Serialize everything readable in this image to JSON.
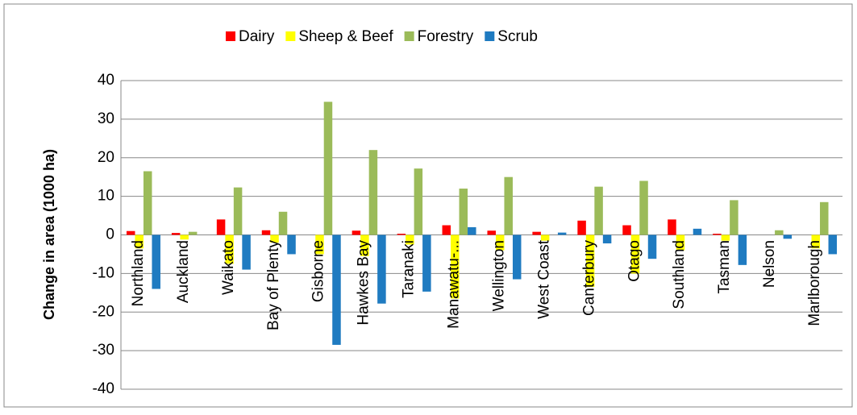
{
  "chart_data": {
    "type": "bar",
    "y_label": "Change in area (1000 ha)",
    "categories": [
      "Northland",
      "Auckland",
      "Waikato",
      "Bay of Plenty",
      "Gisborne",
      "Hawkes Bay",
      "Taranaki",
      "Manawatu-...",
      "Wellington",
      "West Coast",
      "Canterbury",
      "Otago",
      "Southland",
      "Tasman",
      "Nelson",
      "Marlborough"
    ],
    "series": [
      {
        "name": "Dairy",
        "color": "#ff0000",
        "values": [
          1,
          0.5,
          4,
          1.2,
          0,
          1.1,
          0.3,
          2.5,
          1.1,
          0.8,
          3.7,
          2.5,
          4,
          0.3,
          0,
          0
        ]
      },
      {
        "name": "Sheep & Beef",
        "color": "#ffff00",
        "values": [
          -3.5,
          -1.2,
          -7.5,
          -2,
          -5,
          -5.5,
          -2.5,
          -16.5,
          -4,
          -1.5,
          -13.5,
          -10,
          -4,
          -1.5,
          0,
          -3.5
        ]
      },
      {
        "name": "Forestry",
        "color": "#9bbb59",
        "values": [
          16.5,
          0.8,
          12.3,
          6,
          34.5,
          22,
          17.2,
          12,
          15,
          0,
          12.5,
          14,
          0,
          9,
          1.2,
          8.5
        ]
      },
      {
        "name": "Scrub",
        "color": "#1f7bc1",
        "values": [
          -14,
          0,
          -9,
          -5,
          -28.5,
          -17.8,
          -14.7,
          2,
          -11.5,
          0.6,
          -2.2,
          -6.2,
          1.6,
          -7.8,
          -1,
          -5
        ]
      }
    ],
    "ylim": [
      -40,
      40
    ],
    "yticks": [
      -40,
      -30,
      -20,
      -10,
      0,
      10,
      20,
      30,
      40
    ],
    "grid": true,
    "legend": "top"
  }
}
